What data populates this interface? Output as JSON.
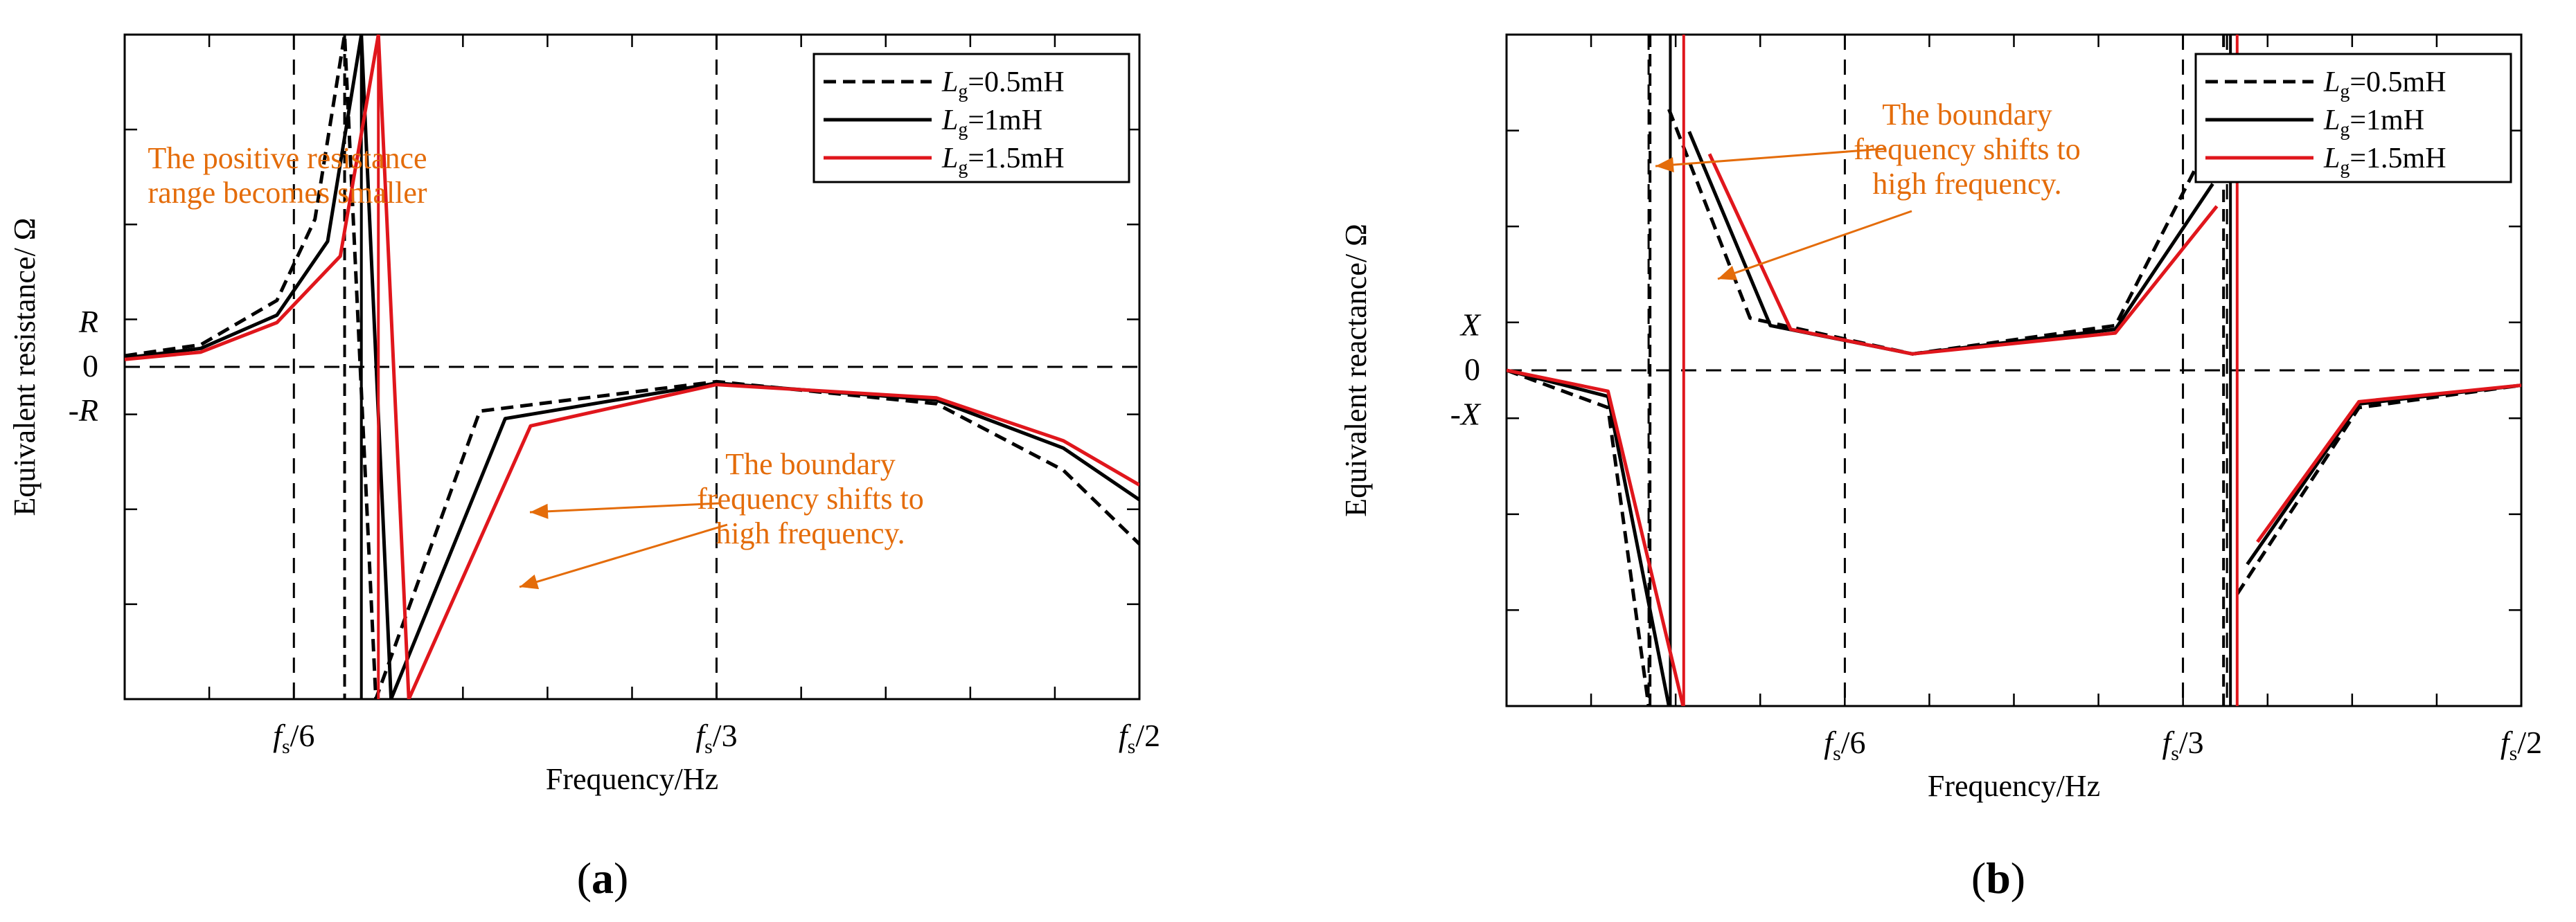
{
  "figure": {
    "panels": [
      {
        "label_open": "(",
        "label_letter": "a",
        "label_close": ")",
        "y_labels": {
          "pos": "R",
          "zero": "0",
          "neg": "-R"
        },
        "annotations": [
          {
            "lines": [
              "The positive resistance",
              "range becomes smaller"
            ]
          },
          {
            "lines": [
              "The boundary",
              "frequency shifts to",
              "high frequency."
            ]
          }
        ]
      },
      {
        "label_open": "(",
        "label_letter": "b",
        "label_close": ")",
        "y_labels": {
          "pos": "X",
          "zero": "0",
          "neg": "-X"
        },
        "annotations": [
          {
            "lines": [
              "The boundary",
              "frequency shifts to",
              "high frequency."
            ]
          }
        ]
      }
    ],
    "legend": [
      {
        "sym": "L",
        "sub": "g",
        "text": "=0.5mH"
      },
      {
        "sym": "L",
        "sub": "g",
        "text": "=1mH"
      },
      {
        "sym": "L",
        "sub": "g",
        "text": "=1.5mH"
      }
    ]
  },
  "colors": {
    "axis": "#000000",
    "curve_black": "#000000",
    "curve_red": "#e0161c",
    "annotation": "#e46c0a"
  },
  "chart_data": [
    {
      "type": "line",
      "title": "(a)",
      "xlabel": "Frequency/Hz",
      "ylabel": "Equivalent resistance/ Ω",
      "xlim": [
        0.1,
        0.5
      ],
      "ylim": [
        -4.5,
        4.5
      ],
      "x_ticks": [
        {
          "value": 0.1667,
          "main": "f",
          "sub": "s",
          "rest": "/6"
        },
        {
          "value": 0.3333,
          "main": "f",
          "sub": "s",
          "rest": "/3"
        },
        {
          "value": 0.5,
          "main": "f",
          "sub": "s",
          "rest": "/2"
        }
      ],
      "dashed_vertical_lines": [
        0.1667,
        0.3333
      ],
      "dashed_horizontal_line": 0,
      "series": [
        {
          "name": "Lg=0.5mH",
          "style": "dashed",
          "color": "#000000",
          "pole": 0.1867,
          "x": [
            0.1,
            0.13,
            0.16,
            0.175,
            0.1867,
            0.199,
            0.24,
            0.3333,
            0.42,
            0.47,
            0.5
          ],
          "y": [
            0.15,
            0.3,
            0.9,
            2.0,
            4.5,
            -4.5,
            -0.6,
            -0.2,
            -0.5,
            -1.4,
            -2.4
          ]
        },
        {
          "name": "Lg=1mH",
          "style": "solid",
          "color": "#000000",
          "pole": 0.1933,
          "x": [
            0.1,
            0.13,
            0.16,
            0.18,
            0.1933,
            0.205,
            0.25,
            0.3333,
            0.42,
            0.47,
            0.5
          ],
          "y": [
            0.12,
            0.25,
            0.7,
            1.7,
            4.5,
            -4.5,
            -0.7,
            -0.22,
            -0.45,
            -1.1,
            -1.8
          ]
        },
        {
          "name": "Lg=1.5mH",
          "style": "solid",
          "color": "#e0161c",
          "pole": 0.2,
          "x": [
            0.1,
            0.13,
            0.16,
            0.185,
            0.2,
            0.212,
            0.26,
            0.3333,
            0.42,
            0.47,
            0.5
          ],
          "y": [
            0.1,
            0.2,
            0.6,
            1.5,
            4.5,
            -4.5,
            -0.8,
            -0.24,
            -0.42,
            -1.0,
            -1.6
          ]
        }
      ],
      "legend": [
        "Lg=0.5mH",
        "Lg=1mH",
        "Lg=1.5mH"
      ]
    },
    {
      "type": "line",
      "title": "(b)",
      "xlabel": "Frequency/Hz",
      "ylabel": "Equivalent reactance/ Ω",
      "xlim": [
        0,
        0.5
      ],
      "ylim": [
        -4.5,
        4.5
      ],
      "x_ticks": [
        {
          "value": 0.1667,
          "main": "f",
          "sub": "s",
          "rest": "/6"
        },
        {
          "value": 0.3333,
          "main": "f",
          "sub": "s",
          "rest": "/3"
        },
        {
          "value": 0.5,
          "main": "f",
          "sub": "s",
          "rest": "/2"
        }
      ],
      "dashed_vertical_lines": [
        0.07,
        0.1667,
        0.3333,
        0.355
      ],
      "dashed_horizontal_line": 0,
      "series": [
        {
          "name": "Lg=0.5mH",
          "style": "dashed",
          "color": "#000000",
          "poles": [
            0.0707,
            0.3533
          ],
          "x": [
            0,
            0.05,
            0.07,
            0.08,
            0.12,
            0.2,
            0.3,
            0.345,
            0.36,
            0.42,
            0.5
          ],
          "y": [
            0,
            -0.5,
            -4.5,
            3.5,
            0.7,
            0.22,
            0.6,
            3.0,
            -3.0,
            -0.5,
            -0.2
          ]
        },
        {
          "name": "Lg=1mH",
          "style": "solid",
          "color": "#000000",
          "poles": [
            0.0807,
            0.3567
          ],
          "x": [
            0,
            0.05,
            0.08,
            0.09,
            0.13,
            0.2,
            0.3,
            0.348,
            0.365,
            0.42,
            0.5
          ],
          "y": [
            0,
            -0.35,
            -4.5,
            3.2,
            0.6,
            0.22,
            0.55,
            2.5,
            -2.6,
            -0.45,
            -0.2
          ]
        },
        {
          "name": "Lg=1.5mH",
          "style": "solid",
          "color": "#e0161c",
          "poles": [
            0.0873,
            0.36
          ],
          "x": [
            0,
            0.05,
            0.087,
            0.1,
            0.14,
            0.2,
            0.3,
            0.35,
            0.37,
            0.42,
            0.5
          ],
          "y": [
            0,
            -0.28,
            -4.5,
            2.9,
            0.55,
            0.22,
            0.5,
            2.2,
            -2.3,
            -0.42,
            -0.2
          ]
        }
      ],
      "legend": [
        "Lg=0.5mH",
        "Lg=1mH",
        "Lg=1.5mH"
      ]
    }
  ]
}
